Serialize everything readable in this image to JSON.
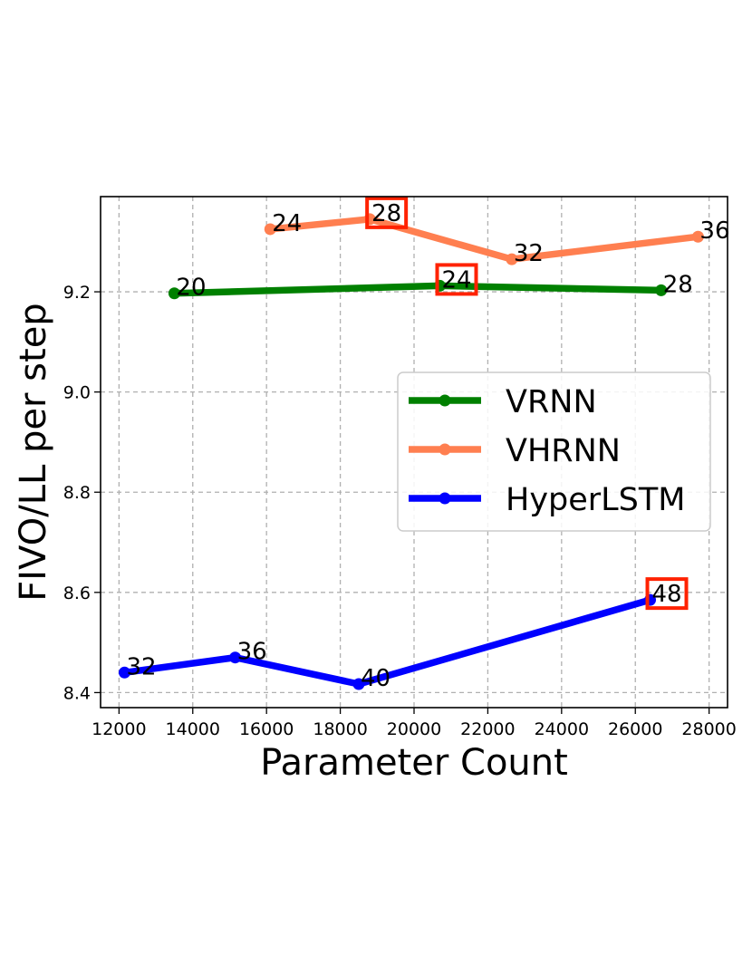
{
  "chart_data": {
    "type": "line",
    "title": "",
    "xlabel": "Parameter Count",
    "ylabel": "FIVO/LL per step",
    "xlim": [
      11500,
      28500
    ],
    "ylim": [
      8.37,
      9.39
    ],
    "xticks": [
      12000,
      14000,
      16000,
      18000,
      20000,
      22000,
      24000,
      26000,
      28000
    ],
    "xtick_labels": [
      "12000",
      "14000",
      "16000",
      "18000",
      "20000",
      "22000",
      "24000",
      "26000",
      "28000"
    ],
    "yticks": [
      8.4,
      8.6,
      8.8,
      9.0,
      9.2
    ],
    "ytick_labels": [
      "8.4",
      "8.6",
      "8.8",
      "9.0",
      "9.2"
    ],
    "grid": true,
    "legend_position": "center-right",
    "series": [
      {
        "name": "VRNN",
        "color": "#008000",
        "x": [
          13500,
          20700,
          26700
        ],
        "y": [
          9.197,
          9.212,
          9.203
        ],
        "labels": [
          "20",
          "24",
          "28"
        ],
        "highlighted": [
          false,
          true,
          false
        ]
      },
      {
        "name": "VHRNN",
        "color": "#ff7f50",
        "x": [
          16100,
          18800,
          22650,
          27700
        ],
        "y": [
          9.325,
          9.345,
          9.265,
          9.31
        ],
        "labels": [
          "24",
          "28",
          "32",
          "36"
        ],
        "highlighted": [
          false,
          true,
          false,
          false
        ]
      },
      {
        "name": "HyperLSTM",
        "color": "#0000ff",
        "x": [
          12150,
          15150,
          18500,
          26400
        ],
        "y": [
          8.44,
          8.47,
          8.417,
          8.585
        ],
        "labels": [
          "32",
          "36",
          "40",
          "48"
        ],
        "highlighted": [
          false,
          false,
          false,
          true
        ]
      }
    ],
    "highlight_color": "#ff2200"
  }
}
